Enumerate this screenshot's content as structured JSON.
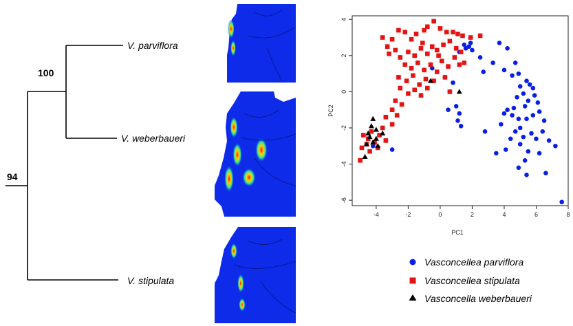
{
  "tree": {
    "taxa": [
      "V. parviflora",
      "V. weberbaueri",
      "V. stipulata"
    ],
    "bootstrap": {
      "inner": "100",
      "root": "94"
    }
  },
  "maps": {
    "count": 3
  },
  "chart_data": {
    "type": "scatter",
    "title": "",
    "xlabel": "PC1",
    "ylabel": "PC2",
    "xlim": [
      -5.5,
      8
    ],
    "ylim": [
      -6.3,
      4.2
    ],
    "xticks": [
      -4,
      -2,
      0,
      2,
      4,
      6,
      8
    ],
    "yticks": [
      -6,
      -4,
      -2,
      0,
      2,
      4
    ],
    "grid": false,
    "legend_position": "below",
    "series": [
      {
        "name": "Vasconcellea parviflora",
        "marker": "circle",
        "color": "#0a1fe6",
        "points": [
          [
            1.5,
            2.6
          ],
          [
            1.8,
            2.5
          ],
          [
            1.6,
            2.4
          ],
          [
            2.0,
            2.3
          ],
          [
            1.2,
            2.2
          ],
          [
            1.9,
            2.7
          ],
          [
            2.5,
            1.9
          ],
          [
            2.7,
            1.1
          ],
          [
            3.3,
            1.6
          ],
          [
            3.7,
            2.7
          ],
          [
            4.0,
            1.2
          ],
          [
            4.2,
            2.4
          ],
          [
            4.5,
            0.9
          ],
          [
            4.7,
            1.6
          ],
          [
            4.9,
            1.0
          ],
          [
            5.4,
            0.6
          ],
          [
            5.6,
            0.4
          ],
          [
            5.8,
            0.2
          ],
          [
            5.0,
            0.3
          ],
          [
            5.2,
            -0.1
          ],
          [
            4.8,
            -0.3
          ],
          [
            5.5,
            -0.5
          ],
          [
            5.9,
            -0.2
          ],
          [
            6.1,
            -0.6
          ],
          [
            5.3,
            -0.8
          ],
          [
            4.6,
            -0.9
          ],
          [
            4.2,
            -1.0
          ],
          [
            4.0,
            -1.2
          ],
          [
            4.5,
            -1.3
          ],
          [
            4.9,
            -1.5
          ],
          [
            5.4,
            -1.5
          ],
          [
            5.8,
            -1.3
          ],
          [
            6.2,
            -1.1
          ],
          [
            6.5,
            -1.6
          ],
          [
            5.0,
            -2.0
          ],
          [
            4.7,
            -2.2
          ],
          [
            5.2,
            -2.5
          ],
          [
            5.7,
            -2.3
          ],
          [
            6.0,
            -2.6
          ],
          [
            6.4,
            -2.2
          ],
          [
            6.8,
            -2.7
          ],
          [
            5.0,
            -2.9
          ],
          [
            4.4,
            -2.6
          ],
          [
            4.1,
            -3.2
          ],
          [
            5.5,
            -3.3
          ],
          [
            6.2,
            -3.4
          ],
          [
            7.2,
            -3.0
          ],
          [
            5.3,
            -3.8
          ],
          [
            4.9,
            -4.2
          ],
          [
            5.4,
            -4.6
          ],
          [
            6.6,
            -4.5
          ],
          [
            3.5,
            -3.4
          ],
          [
            2.8,
            -2.2
          ],
          [
            7.6,
            -6.1
          ],
          [
            0.8,
            0.5
          ],
          [
            1.0,
            -0.8
          ],
          [
            1.2,
            -1.2
          ],
          [
            1.1,
            -1.6
          ],
          [
            1.3,
            -1.9
          ],
          [
            0.5,
            -1.0
          ],
          [
            -0.5,
            1.3
          ],
          [
            -4.2,
            -3.0
          ],
          [
            -3.0,
            -3.2
          ],
          [
            3.8,
            -1.8
          ]
        ]
      },
      {
        "name": "Vasconcellea stipulata",
        "marker": "square",
        "color": "#e51414",
        "points": [
          [
            -3.6,
            3.0
          ],
          [
            -3.3,
            2.5
          ],
          [
            -3.0,
            2.9
          ],
          [
            -2.6,
            3.4
          ],
          [
            -2.2,
            3.3
          ],
          [
            -1.8,
            2.9
          ],
          [
            -1.5,
            3.2
          ],
          [
            -1.0,
            3.4
          ],
          [
            -0.8,
            3.6
          ],
          [
            -0.4,
            3.9
          ],
          [
            0.0,
            3.5
          ],
          [
            0.4,
            3.3
          ],
          [
            0.8,
            3.3
          ],
          [
            1.1,
            3.2
          ],
          [
            1.4,
            3.1
          ],
          [
            1.9,
            3.0
          ],
          [
            2.5,
            3.1
          ],
          [
            -3.2,
            2.1
          ],
          [
            -2.8,
            2.3
          ],
          [
            -2.5,
            1.9
          ],
          [
            -2.0,
            2.2
          ],
          [
            -1.6,
            2.0
          ],
          [
            -1.2,
            2.4
          ],
          [
            -0.8,
            2.1
          ],
          [
            -0.5,
            2.5
          ],
          [
            -0.2,
            2.3
          ],
          [
            0.2,
            2.6
          ],
          [
            0.6,
            2.8
          ],
          [
            1.0,
            2.4
          ],
          [
            1.3,
            2.2
          ],
          [
            -2.2,
            1.5
          ],
          [
            -1.8,
            1.3
          ],
          [
            -1.4,
            1.6
          ],
          [
            -1.0,
            1.2
          ],
          [
            -0.6,
            1.5
          ],
          [
            -0.2,
            1.1
          ],
          [
            0.1,
            1.7
          ],
          [
            0.5,
            1.4
          ],
          [
            0.9,
            1.9
          ],
          [
            1.2,
            1.5
          ],
          [
            -2.6,
            0.8
          ],
          [
            -2.1,
            0.6
          ],
          [
            -1.7,
            0.9
          ],
          [
            -1.3,
            0.4
          ],
          [
            -0.9,
            0.7
          ],
          [
            -0.4,
            0.6
          ],
          [
            0.3,
            0.8
          ],
          [
            -2.5,
            0.2
          ],
          [
            -2.0,
            -0.1
          ],
          [
            -1.6,
            0.1
          ],
          [
            -1.2,
            -0.2
          ],
          [
            -0.8,
            0.2
          ],
          [
            -2.8,
            -0.5
          ],
          [
            -2.4,
            -0.7
          ],
          [
            -3.0,
            -1.0
          ],
          [
            -2.7,
            -1.3
          ],
          [
            -3.4,
            -1.4
          ],
          [
            -3.0,
            -1.8
          ],
          [
            -3.6,
            -2.0
          ],
          [
            -4.3,
            -2.2
          ],
          [
            -4.8,
            -2.4
          ],
          [
            -4.5,
            -2.6
          ],
          [
            -4.1,
            -2.8
          ],
          [
            -4.6,
            -2.9
          ],
          [
            -4.9,
            -3.1
          ],
          [
            -4.4,
            -3.3
          ],
          [
            -5.0,
            -3.8
          ],
          [
            -3.9,
            -3.1
          ],
          [
            -3.4,
            -2.7
          ],
          [
            -3.8,
            -2.4
          ],
          [
            0.6,
            0.0
          ],
          [
            -0.1,
            2.0
          ],
          [
            1.5,
            1.6
          ],
          [
            -1.1,
            2.7
          ]
        ]
      },
      {
        "name": "Vasconcella weberbaueri",
        "marker": "triangle",
        "color": "#000000",
        "points": [
          [
            -4.2,
            -1.5
          ],
          [
            -4.3,
            -1.9
          ],
          [
            -4.0,
            -2.1
          ],
          [
            -3.6,
            -2.3
          ],
          [
            -4.5,
            -2.3
          ],
          [
            -4.4,
            -2.5
          ],
          [
            -4.0,
            -2.6
          ],
          [
            -4.6,
            -2.9
          ],
          [
            -4.7,
            -3.6
          ],
          [
            -4.2,
            -2.8
          ],
          [
            -3.9,
            -3.0
          ],
          [
            -0.6,
            0.6
          ],
          [
            1.2,
            0.0
          ]
        ]
      }
    ]
  }
}
